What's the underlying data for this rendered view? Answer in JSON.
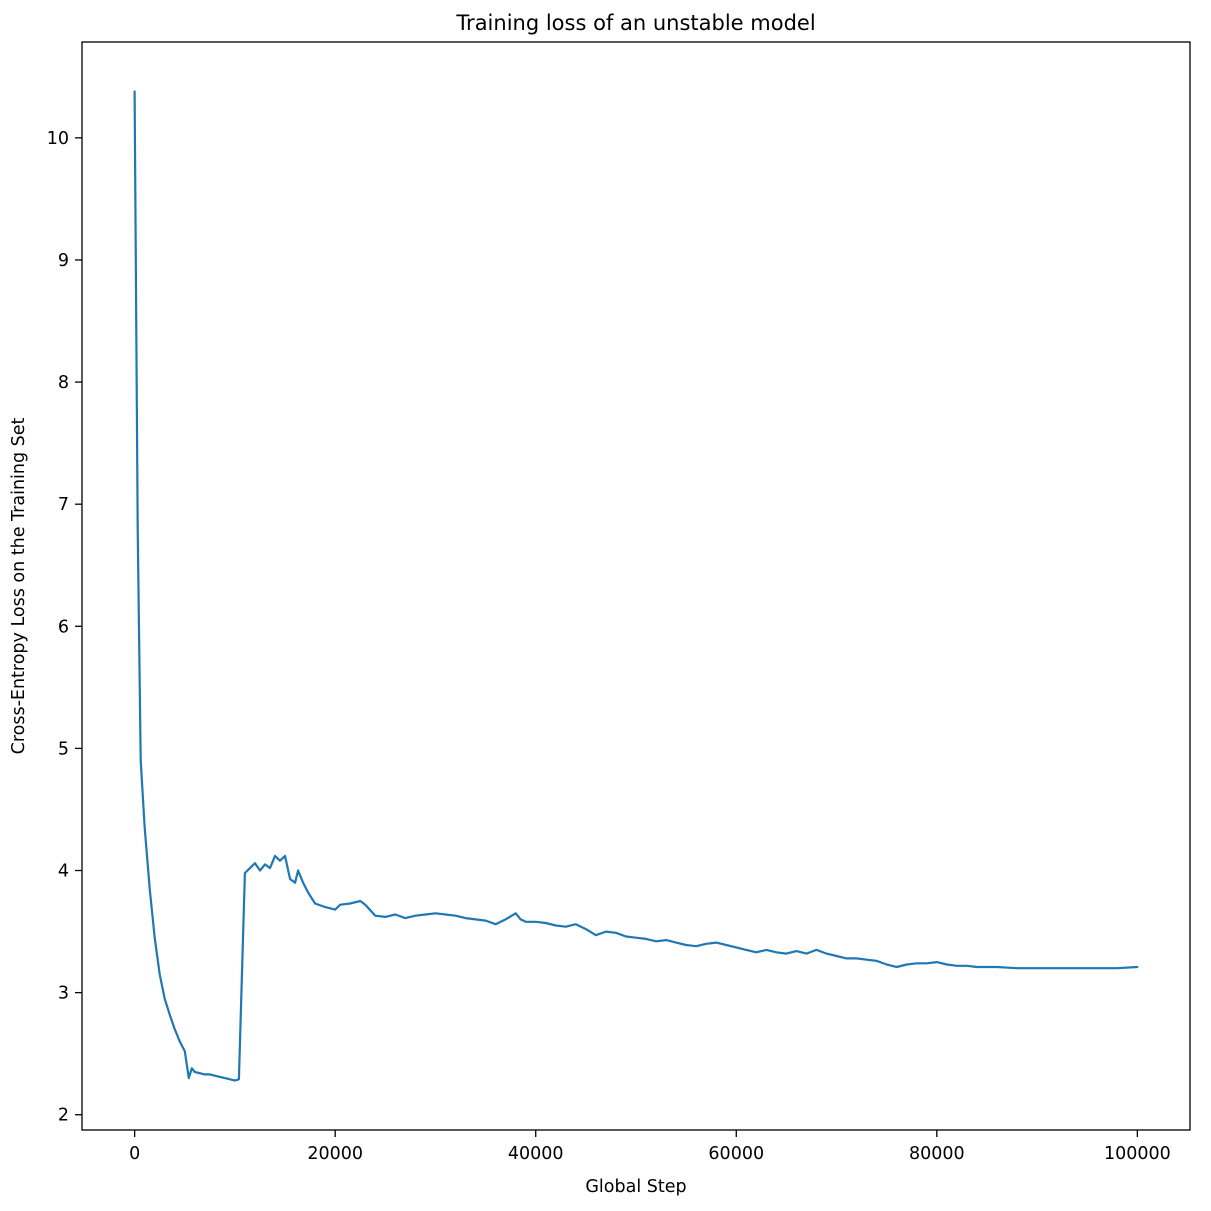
{
  "chart_data": {
    "type": "line",
    "title": "Training loss of an unstable model",
    "xlabel": "Global Step",
    "ylabel": "Cross-Entropy Loss on the Training Set",
    "xlim": [
      -5250,
      105250
    ],
    "ylim": [
      1.875,
      10.785
    ],
    "xticks": [
      0,
      20000,
      40000,
      60000,
      80000,
      100000
    ],
    "yticks": [
      2,
      3,
      4,
      5,
      6,
      7,
      8,
      9,
      10
    ],
    "grid": false,
    "legend": "none",
    "line_color": "#1f77b4",
    "line_width": 2.2,
    "series_name": "training loss",
    "points": [
      [
        0,
        10.38
      ],
      [
        300,
        6.8
      ],
      [
        600,
        4.9
      ],
      [
        1000,
        4.35
      ],
      [
        1500,
        3.85
      ],
      [
        2000,
        3.45
      ],
      [
        2500,
        3.15
      ],
      [
        3000,
        2.95
      ],
      [
        3500,
        2.82
      ],
      [
        4000,
        2.7
      ],
      [
        4500,
        2.6
      ],
      [
        5000,
        2.52
      ],
      [
        5400,
        2.3
      ],
      [
        5700,
        2.38
      ],
      [
        6000,
        2.35
      ],
      [
        6500,
        2.34
      ],
      [
        7000,
        2.33
      ],
      [
        7500,
        2.33
      ],
      [
        8000,
        2.32
      ],
      [
        8500,
        2.31
      ],
      [
        9000,
        2.3
      ],
      [
        9500,
        2.29
      ],
      [
        10000,
        2.28
      ],
      [
        10400,
        2.29
      ],
      [
        11000,
        3.98
      ],
      [
        11500,
        4.02
      ],
      [
        12000,
        4.06
      ],
      [
        12500,
        4.0
      ],
      [
        13000,
        4.05
      ],
      [
        13500,
        4.02
      ],
      [
        14000,
        4.12
      ],
      [
        14500,
        4.08
      ],
      [
        15000,
        4.12
      ],
      [
        15500,
        3.93
      ],
      [
        16000,
        3.9
      ],
      [
        16300,
        4.0
      ],
      [
        16800,
        3.9
      ],
      [
        17300,
        3.82
      ],
      [
        18000,
        3.73
      ],
      [
        19000,
        3.7
      ],
      [
        20000,
        3.68
      ],
      [
        20500,
        3.72
      ],
      [
        21500,
        3.73
      ],
      [
        22500,
        3.75
      ],
      [
        23000,
        3.72
      ],
      [
        24000,
        3.63
      ],
      [
        25000,
        3.62
      ],
      [
        26000,
        3.64
      ],
      [
        27000,
        3.61
      ],
      [
        28000,
        3.63
      ],
      [
        29000,
        3.64
      ],
      [
        30000,
        3.65
      ],
      [
        31000,
        3.64
      ],
      [
        32000,
        3.63
      ],
      [
        33000,
        3.61
      ],
      [
        34000,
        3.6
      ],
      [
        35000,
        3.59
      ],
      [
        36000,
        3.56
      ],
      [
        37000,
        3.6
      ],
      [
        38000,
        3.65
      ],
      [
        38500,
        3.6
      ],
      [
        39000,
        3.58
      ],
      [
        40000,
        3.58
      ],
      [
        41000,
        3.57
      ],
      [
        42000,
        3.55
      ],
      [
        43000,
        3.54
      ],
      [
        44000,
        3.56
      ],
      [
        45000,
        3.52
      ],
      [
        46000,
        3.47
      ],
      [
        47000,
        3.5
      ],
      [
        48000,
        3.49
      ],
      [
        49000,
        3.46
      ],
      [
        50000,
        3.45
      ],
      [
        51000,
        3.44
      ],
      [
        52000,
        3.42
      ],
      [
        53000,
        3.43
      ],
      [
        54000,
        3.41
      ],
      [
        55000,
        3.39
      ],
      [
        56000,
        3.38
      ],
      [
        57000,
        3.4
      ],
      [
        58000,
        3.41
      ],
      [
        59000,
        3.39
      ],
      [
        60000,
        3.37
      ],
      [
        61000,
        3.35
      ],
      [
        62000,
        3.33
      ],
      [
        63000,
        3.35
      ],
      [
        64000,
        3.33
      ],
      [
        65000,
        3.32
      ],
      [
        66000,
        3.34
      ],
      [
        67000,
        3.32
      ],
      [
        68000,
        3.35
      ],
      [
        69000,
        3.32
      ],
      [
        70000,
        3.3
      ],
      [
        71000,
        3.28
      ],
      [
        72000,
        3.28
      ],
      [
        73000,
        3.27
      ],
      [
        74000,
        3.26
      ],
      [
        75000,
        3.23
      ],
      [
        76000,
        3.21
      ],
      [
        77000,
        3.23
      ],
      [
        78000,
        3.24
      ],
      [
        79000,
        3.24
      ],
      [
        80000,
        3.25
      ],
      [
        81000,
        3.23
      ],
      [
        82000,
        3.22
      ],
      [
        83000,
        3.22
      ],
      [
        84000,
        3.21
      ],
      [
        86000,
        3.21
      ],
      [
        88000,
        3.2
      ],
      [
        90000,
        3.2
      ],
      [
        92000,
        3.2
      ],
      [
        94000,
        3.2
      ],
      [
        96000,
        3.2
      ],
      [
        98000,
        3.2
      ],
      [
        100000,
        3.21
      ]
    ]
  }
}
